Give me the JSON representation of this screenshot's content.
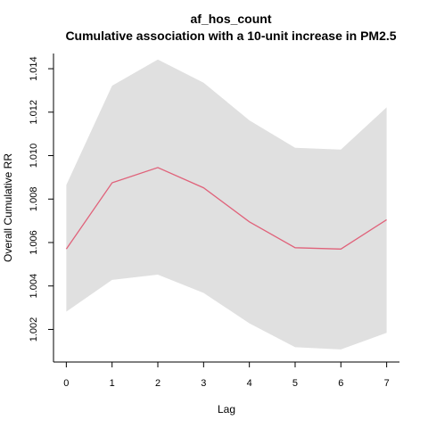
{
  "chart_data": {
    "type": "line",
    "title": "af_hos_count",
    "subtitle": "Cumulative association with a 10-unit increase in PM2.5",
    "xlabel": "Lag",
    "ylabel": "Overall Cumulative RR",
    "x": [
      0,
      1,
      2,
      3,
      4,
      5,
      6,
      7
    ],
    "xticks": [
      "0",
      "1",
      "2",
      "3",
      "4",
      "5",
      "6",
      "7"
    ],
    "yticks": [
      "1.002",
      "1.004",
      "1.006",
      "1.008",
      "1.010",
      "1.012",
      "1.014"
    ],
    "ylim": [
      1.0005,
      1.0147
    ],
    "xlim": [
      -0.28,
      7.28
    ],
    "grid": false,
    "series": [
      {
        "values": [
          1.0057,
          1.00875,
          1.00945,
          1.00852,
          1.00695,
          1.00576,
          1.0057,
          1.00705
        ],
        "lower": [
          1.00282,
          1.00428,
          1.00452,
          1.00368,
          1.00228,
          1.00118,
          1.00108,
          1.00184
        ],
        "upper": [
          1.00865,
          1.01322,
          1.01442,
          1.01336,
          1.01162,
          1.01036,
          1.01028,
          1.01222
        ],
        "line_color": "#E0627A",
        "band_color": "#E0E0E0"
      }
    ]
  }
}
